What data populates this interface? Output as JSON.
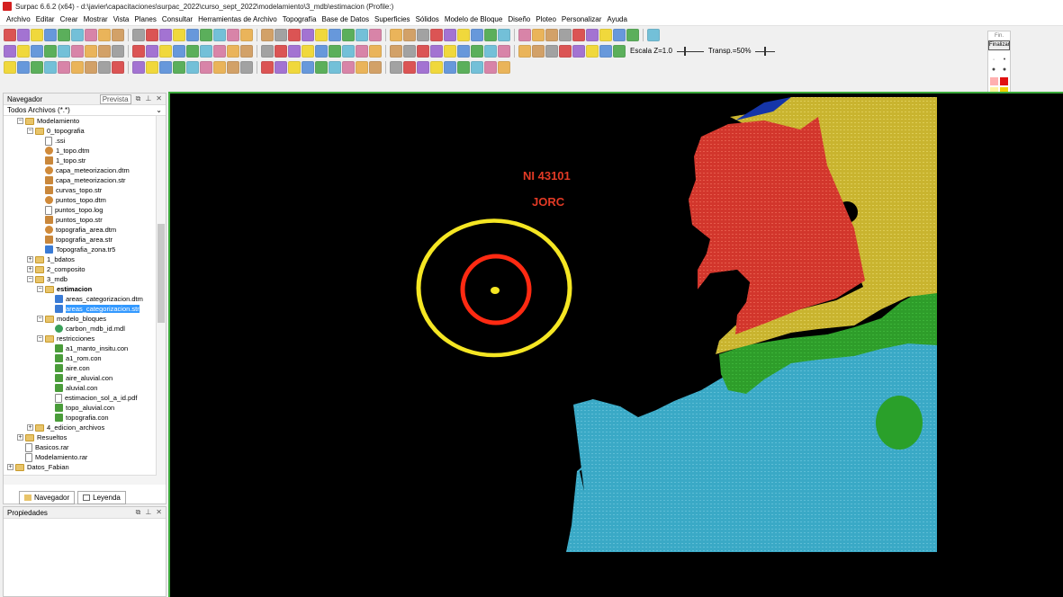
{
  "window": {
    "title": "Surpac 6.6.2 (x64) - d:\\javier\\capacitaciones\\surpac_2022\\curso_sept_2022\\modelamiento\\3_mdb\\estimacion (Profile:)"
  },
  "menu": [
    "Archivo",
    "Editar",
    "Crear",
    "Mostrar",
    "Vista",
    "Planes",
    "Consultar",
    "Herramientas de Archivo",
    "Topografía",
    "Base de Datos",
    "Superficies",
    "Sólidos",
    "Modelo de Bloque",
    "Diseño",
    "Ploteo",
    "Personalizar",
    "Ayuda"
  ],
  "toolbar": {
    "scale_label": "Escala Z=1.0",
    "transparency_label": "Transp.=50%"
  },
  "palette": {
    "top_label": "Fin.",
    "finish_label": "Finalizar"
  },
  "navigator": {
    "title": "Navegador",
    "preview": "Prevista",
    "filter": "Todos Archivos (*.*)",
    "tree": [
      {
        "level": 2,
        "type": "folder",
        "exp": "−",
        "label": "Modelamiento"
      },
      {
        "level": 3,
        "type": "folder",
        "exp": "−",
        "label": "0_topografia"
      },
      {
        "level": 4,
        "type": "white",
        "label": ".ssi"
      },
      {
        "level": 4,
        "type": "dtm",
        "label": "1_topo.dtm"
      },
      {
        "level": 4,
        "type": "str",
        "label": "1_topo.str"
      },
      {
        "level": 4,
        "type": "dtm",
        "label": "capa_meteorizacion.dtm"
      },
      {
        "level": 4,
        "type": "str",
        "label": "capa_meteorizacion.str"
      },
      {
        "level": 4,
        "type": "str",
        "label": "curvas_topo.str"
      },
      {
        "level": 4,
        "type": "dtm",
        "label": "puntos_topo.dtm"
      },
      {
        "level": 4,
        "type": "white",
        "label": "puntos_topo.log"
      },
      {
        "level": 4,
        "type": "str",
        "label": "puntos_topo.str"
      },
      {
        "level": 4,
        "type": "dtm",
        "label": "topografia_area.dtm"
      },
      {
        "level": 4,
        "type": "str",
        "label": "topografia_area.str"
      },
      {
        "level": 4,
        "type": "sta",
        "label": "Topografia_zona.tr5"
      },
      {
        "level": 3,
        "type": "folder",
        "exp": "+",
        "label": "1_bdatos"
      },
      {
        "level": 3,
        "type": "folder",
        "exp": "+",
        "label": "2_composito"
      },
      {
        "level": 3,
        "type": "folder",
        "exp": "−",
        "label": "3_mdb"
      },
      {
        "level": 4,
        "type": "folder",
        "exp": "−",
        "label": "estimacion",
        "bold": true
      },
      {
        "level": 5,
        "type": "sta",
        "label": "areas_categorizacion.dtm"
      },
      {
        "level": 5,
        "type": "sta",
        "label": "areas_categorizacion.str",
        "selected": true
      },
      {
        "level": 4,
        "type": "folder",
        "exp": "−",
        "label": "modelo_bloques"
      },
      {
        "level": 5,
        "type": "mdl",
        "label": "carbon_mdb_id.mdl"
      },
      {
        "level": 4,
        "type": "folder",
        "exp": "−",
        "label": "restricciones"
      },
      {
        "level": 5,
        "type": "con",
        "label": "a1_manto_insitu.con"
      },
      {
        "level": 5,
        "type": "con",
        "label": "a1_rom.con"
      },
      {
        "level": 5,
        "type": "con",
        "label": "aire.con"
      },
      {
        "level": 5,
        "type": "con",
        "label": "aire_aluvial.con"
      },
      {
        "level": 5,
        "type": "con",
        "label": "aluvial.con"
      },
      {
        "level": 5,
        "type": "white",
        "label": "estimacion_sol_a_id.pdf"
      },
      {
        "level": 5,
        "type": "con",
        "label": "topo_aluvial.con"
      },
      {
        "level": 5,
        "type": "con",
        "label": "topografia.con"
      },
      {
        "level": 3,
        "type": "folder",
        "exp": "+",
        "label": "4_edicion_archivos"
      },
      {
        "level": 2,
        "type": "folder",
        "exp": "+",
        "label": "Resueltos"
      },
      {
        "level": 2,
        "type": "white",
        "label": "Basicos.rar"
      },
      {
        "level": 2,
        "type": "white",
        "label": "Modelamiento.rar"
      },
      {
        "level": 1,
        "type": "folder",
        "exp": "+",
        "label": "Datos_Fabian"
      }
    ]
  },
  "tabs": {
    "navegador": "Navegador",
    "leyenda": "Leyenda"
  },
  "properties": {
    "title": "Propiedades"
  },
  "viewport": {
    "label1": "NI 43101",
    "label2": "JORC"
  },
  "colors": {
    "measured_red": "#d2362c",
    "indicated_yellow": "#c9b42f",
    "inferred_green": "#2e9d2a",
    "unclassified_cyan": "#3aa9c6",
    "circle_outer": "#f5e623",
    "circle_inner": "#ff2a12"
  }
}
